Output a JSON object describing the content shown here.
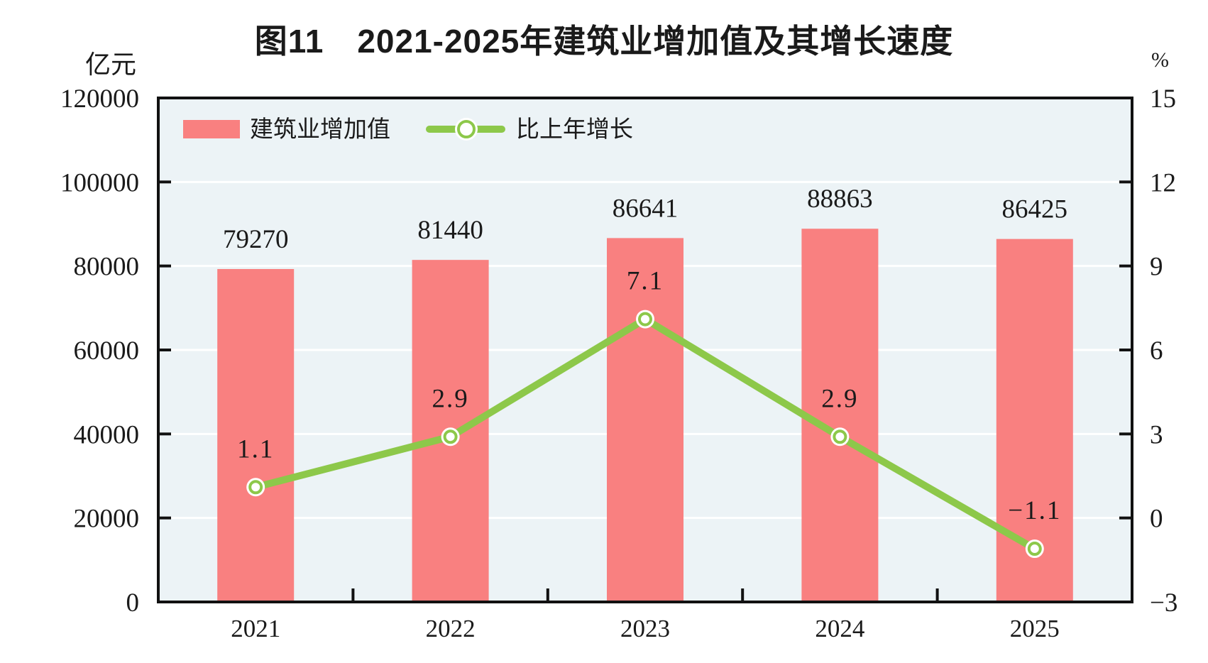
{
  "header": {
    "title": "图11　2021-2025年建筑业增加值及其增长速度"
  },
  "axes": {
    "left_unit": "亿元",
    "right_unit": "%"
  },
  "legend": {
    "bar_label": "建筑业增加值",
    "line_label": "比上年增长"
  },
  "colors": {
    "bar": "#F98080",
    "line": "#8DC84A",
    "marker_fill": "#FFFFFF",
    "plot_bg": "#ECF3F6",
    "grid": "#FFFFFF",
    "axis": "#111111",
    "text": "#1A1A1A"
  },
  "chart_data": {
    "type": "bar+line",
    "title": "图11　2021-2025年建筑业增加值及其增长速度",
    "categories": [
      "2021",
      "2022",
      "2023",
      "2024",
      "2025"
    ],
    "series": [
      {
        "name": "建筑业增加值",
        "type": "bar",
        "yaxis": "left",
        "values": [
          79270,
          81440,
          86641,
          88863,
          86425
        ],
        "labels": [
          "79270",
          "81440",
          "86641",
          "88863",
          "86425"
        ]
      },
      {
        "name": "比上年增长",
        "type": "line",
        "yaxis": "right",
        "values": [
          1.1,
          2.9,
          7.1,
          2.9,
          -1.1
        ],
        "labels": [
          "1.1",
          "2.9",
          "7.1",
          "2.9",
          "−1.1"
        ]
      }
    ],
    "left_axis": {
      "label": "亿元",
      "min": 0,
      "max": 120000,
      "step": 20000
    },
    "right_axis": {
      "label": "%",
      "min": -3,
      "max": 15,
      "step": 3
    },
    "grid": true,
    "grid_lines": "white horizontal",
    "legend_position": "top-left-inside",
    "data_labels": true
  }
}
